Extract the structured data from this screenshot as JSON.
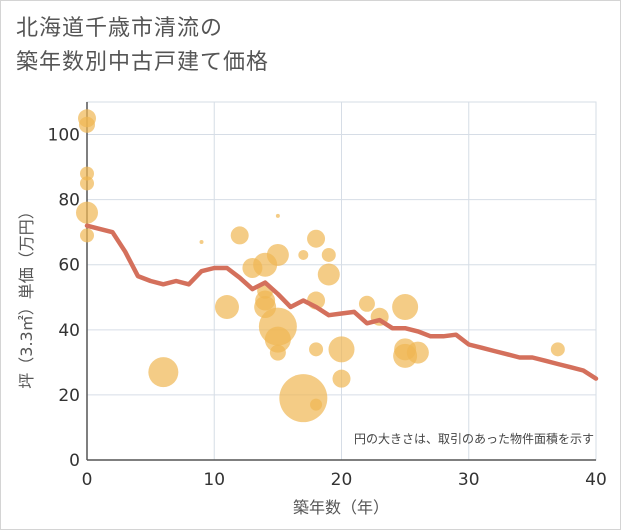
{
  "title": {
    "line1": "北海道千歳市清流の",
    "line2": "築年数別中古戸建て価格"
  },
  "chart_data": {
    "type": "scatter",
    "xlabel": "築年数（年）",
    "ylabel": "坪（3.3㎡）単価（万円）",
    "xlim": [
      0,
      40
    ],
    "ylim": [
      0,
      110
    ],
    "xticks": [
      0,
      10,
      20,
      30,
      40
    ],
    "yticks": [
      0,
      20,
      40,
      60,
      80,
      100
    ],
    "grid": true,
    "note": "円の大きさは、取引のあった物件面積を示す",
    "colors": {
      "bubble": "#f0b653",
      "line": "#d4705c",
      "grid": "#d6dde6",
      "axis": "#555555"
    },
    "bubbles": [
      {
        "x": 0,
        "y": 105,
        "size": 9
      },
      {
        "x": 0,
        "y": 103,
        "size": 8
      },
      {
        "x": 0,
        "y": 88,
        "size": 7
      },
      {
        "x": 0,
        "y": 85,
        "size": 7
      },
      {
        "x": 0,
        "y": 76,
        "size": 11
      },
      {
        "x": 0,
        "y": 69,
        "size": 7
      },
      {
        "x": 6,
        "y": 27,
        "size": 15
      },
      {
        "x": 9,
        "y": 67,
        "size": 2
      },
      {
        "x": 11,
        "y": 47,
        "size": 12
      },
      {
        "x": 12,
        "y": 69,
        "size": 9
      },
      {
        "x": 13,
        "y": 59,
        "size": 10
      },
      {
        "x": 14,
        "y": 60,
        "size": 12
      },
      {
        "x": 14,
        "y": 52,
        "size": 8
      },
      {
        "x": 14,
        "y": 49,
        "size": 10
      },
      {
        "x": 14,
        "y": 47,
        "size": 11
      },
      {
        "x": 15,
        "y": 75,
        "size": 2
      },
      {
        "x": 15,
        "y": 63,
        "size": 11
      },
      {
        "x": 15,
        "y": 41,
        "size": 19
      },
      {
        "x": 15,
        "y": 37,
        "size": 13
      },
      {
        "x": 15,
        "y": 33,
        "size": 8
      },
      {
        "x": 17,
        "y": 63,
        "size": 5
      },
      {
        "x": 17,
        "y": 19,
        "size": 24
      },
      {
        "x": 18,
        "y": 68,
        "size": 9
      },
      {
        "x": 18,
        "y": 49,
        "size": 9
      },
      {
        "x": 18,
        "y": 34,
        "size": 7
      },
      {
        "x": 18,
        "y": 17,
        "size": 6
      },
      {
        "x": 19,
        "y": 63,
        "size": 7
      },
      {
        "x": 19,
        "y": 57,
        "size": 11
      },
      {
        "x": 20,
        "y": 34,
        "size": 13
      },
      {
        "x": 20,
        "y": 25,
        "size": 9
      },
      {
        "x": 22,
        "y": 48,
        "size": 8
      },
      {
        "x": 23,
        "y": 44,
        "size": 9
      },
      {
        "x": 25,
        "y": 47,
        "size": 13
      },
      {
        "x": 25,
        "y": 34,
        "size": 11
      },
      {
        "x": 25,
        "y": 32,
        "size": 12
      },
      {
        "x": 26,
        "y": 33,
        "size": 11
      },
      {
        "x": 37,
        "y": 34,
        "size": 7
      }
    ],
    "trend": {
      "x": [
        0,
        1,
        2,
        3,
        4,
        5,
        6,
        7,
        8,
        9,
        10,
        11,
        12,
        13,
        14,
        15,
        16,
        17,
        18,
        19,
        20,
        21,
        22,
        23,
        24,
        25,
        26,
        27,
        28,
        29,
        30,
        31,
        32,
        33,
        34,
        35,
        36,
        37,
        38,
        39,
        40
      ],
      "y": [
        72,
        71,
        70,
        64,
        56.5,
        55,
        54,
        55,
        54,
        58,
        59,
        59,
        56,
        52.5,
        54.5,
        51,
        47,
        49,
        47,
        44.5,
        45,
        45.5,
        42,
        43,
        40.5,
        40.5,
        39.5,
        38,
        38,
        38.5,
        35.5,
        34.5,
        33.5,
        32.5,
        31.5,
        31.5,
        30.5,
        29.5,
        28.5,
        27.5,
        25
      ]
    }
  }
}
